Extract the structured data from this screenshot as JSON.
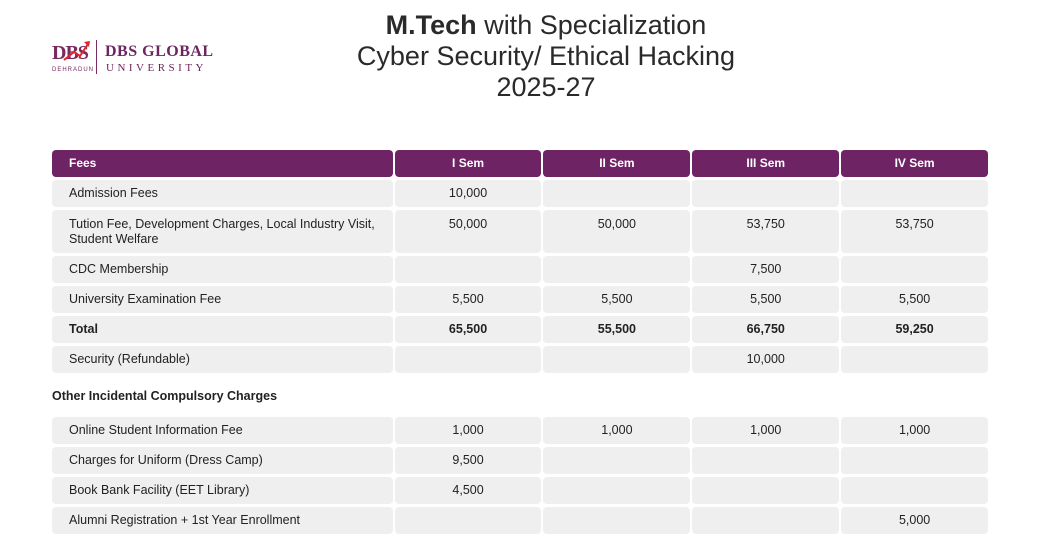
{
  "logo": {
    "mark": "DBS",
    "mark_sub": "DEHRADUN",
    "name_line1": "DBS GLOBAL",
    "name_line2": "UNIVERSITY"
  },
  "title": {
    "line1_bold": "M.Tech",
    "line1_rest": " with Specialization",
    "line2": "Cyber Security/ Ethical Hacking",
    "line3": "2025-27"
  },
  "fees_table": {
    "headers": [
      "Fees",
      "I Sem",
      "II Sem",
      "III Sem",
      "IV Sem"
    ],
    "rows": [
      [
        "Admission Fees",
        "10,000",
        "",
        "",
        ""
      ],
      [
        "Tution Fee, Development Charges, Local Industry Visit, Student Welfare",
        "50,000",
        "50,000",
        "53,750",
        "53,750"
      ],
      [
        "CDC Membership",
        "",
        "",
        "7,500",
        ""
      ],
      [
        "University Examination Fee",
        "5,500",
        "5,500",
        "5,500",
        "5,500"
      ],
      [
        "Total",
        "65,500",
        "55,500",
        "66,750",
        "59,250"
      ],
      [
        "Security (Refundable)",
        "",
        "",
        "10,000",
        ""
      ]
    ]
  },
  "other_section": {
    "title": "Other Incidental Compulsory Charges",
    "rows": [
      [
        "Online Student Information Fee",
        "1,000",
        "1,000",
        "1,000",
        "1,000"
      ],
      [
        "Charges for Uniform (Dress Camp)",
        "9,500",
        "",
        "",
        ""
      ],
      [
        "Book Bank Facility (EET Library)",
        "4,500",
        "",
        "",
        ""
      ],
      [
        "Alumni Registration + 1st Year Enrollment",
        "",
        "",
        "",
        "5,000"
      ]
    ]
  },
  "colors": {
    "header_bg": "#6e2365",
    "cell_bg": "#efefef",
    "brand": "#6b2560",
    "accent_red": "#e0262b"
  }
}
